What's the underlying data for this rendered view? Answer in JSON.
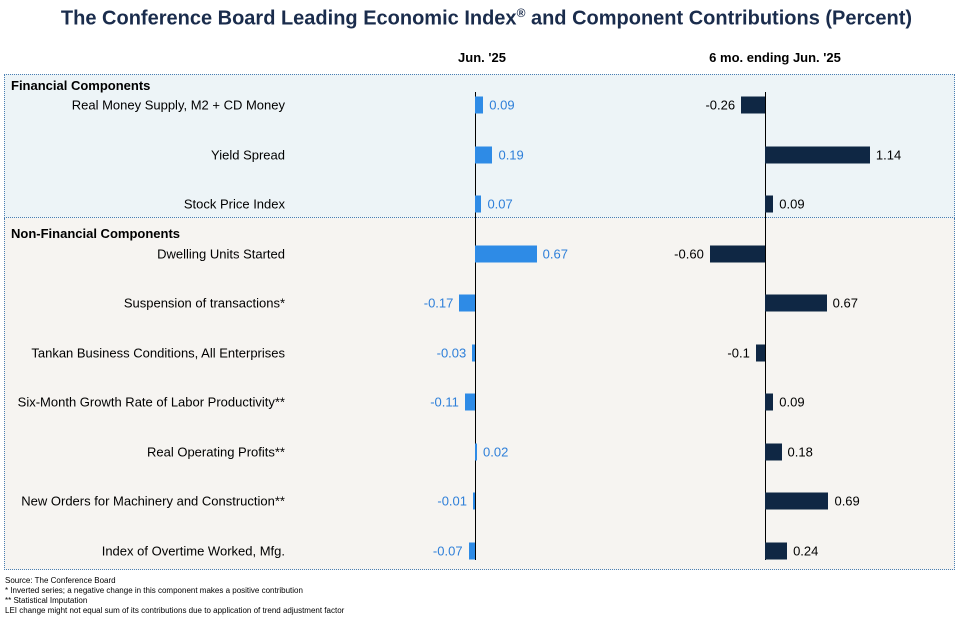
{
  "title": {
    "main": "The Conference Board Leading Economic Index",
    "reg": "®",
    "rest": " and Component Contributions (Percent)"
  },
  "columns": {
    "left": "Jun. '25",
    "right": "6 mo. ending Jun. '25"
  },
  "colors": {
    "left_bar": "#2e8be6",
    "left_text": "#2e7fd9",
    "right_bar": "#0f2744",
    "right_text": "#000000",
    "title": "#1a2c4c"
  },
  "sections": {
    "financial": "Financial Components",
    "non_financial": "Non-Financial Components"
  },
  "chart_data": {
    "type": "bar",
    "orientation": "horizontal",
    "categories": [
      "Real Money Supply, M2 + CD Money",
      "Yield Spread",
      "Stock Price Index",
      "Dwelling Units Started",
      "Suspension of transactions*",
      "Tankan Business Conditions, All Enterprises",
      "Six-Month Growth Rate of Labor Productivity**",
      "Real Operating Profits**",
      "New Orders for Machinery and Construction**",
      "Index of Overtime Worked, Mfg."
    ],
    "series": [
      {
        "name": "Jun. '25",
        "values": [
          0.09,
          0.19,
          0.07,
          0.67,
          -0.17,
          -0.03,
          -0.11,
          0.02,
          -0.01,
          -0.07
        ],
        "labels": [
          "0.09",
          "0.19",
          "0.07",
          "0.67",
          "-0.17",
          "-0.03",
          "-0.11",
          "0.02",
          "-0.01",
          "-0.07"
        ]
      },
      {
        "name": "6 mo. ending Jun. '25",
        "values": [
          -0.26,
          1.14,
          0.09,
          -0.6,
          0.67,
          -0.1,
          0.09,
          0.18,
          0.69,
          0.24
        ],
        "labels": [
          "-0.26",
          "1.14",
          "0.09",
          "-0.60",
          "0.67",
          "-0.1",
          "0.09",
          "0.18",
          "0.69",
          "0.24"
        ]
      }
    ]
  },
  "footer": [
    "Source: The Conference Board",
    "*  Inverted series; a negative change in this component makes a positive contribution",
    "** Statistical Imputation",
    "LEI change might not equal sum of its contributions due to application of trend adjustment  factor"
  ]
}
